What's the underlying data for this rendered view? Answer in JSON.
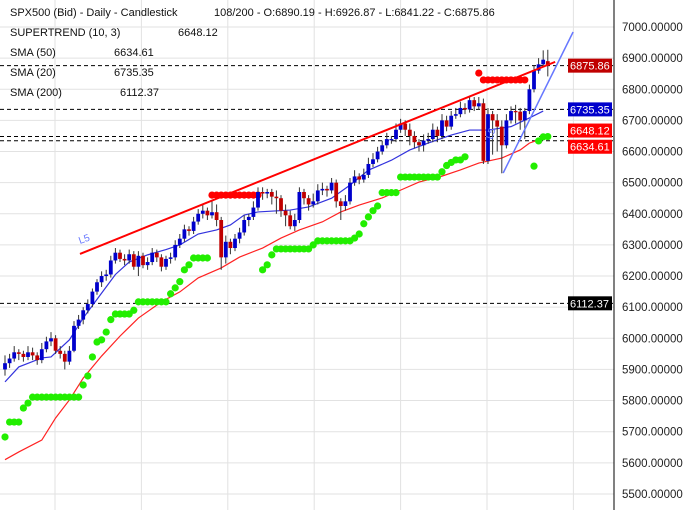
{
  "header": {
    "title": "SPX500 (Bid) - Daily - Candlestick",
    "ohlc_readout": "108/200 - O:6890.19 - H:6926.87 - L:6841.22 - C:6875.86",
    "indicators": [
      {
        "label": "SUPERTREND (10, 3)",
        "value": "6648.12"
      },
      {
        "label": "SMA (50)",
        "value": "6634.61"
      },
      {
        "label": "SMA (20)",
        "value": "6735.35"
      },
      {
        "label": "SMA (200)",
        "value": "6112.37"
      }
    ]
  },
  "chart_data": {
    "type": "candlestick",
    "symbol": "SPX500 (Bid)",
    "timeframe": "Daily",
    "ylim": [
      5450,
      7080
    ],
    "y_ticks": [
      "7000.00000",
      "6900.00000",
      "6800.00000",
      "6700.00000",
      "6600.00000",
      "6500.00000",
      "6400.00000",
      "6300.00000",
      "6200.00000",
      "6100.00000",
      "6000.00000",
      "5900.00000",
      "5800.00000",
      "5700.00000",
      "5600.00000",
      "5500.00000"
    ],
    "grid": true,
    "colors": {
      "up": "#0000cc",
      "down": "#c00000",
      "sma20": "#3333dd",
      "sma50": "#ff2222",
      "supertrend_up": "#22ee00",
      "supertrend_down": "#ff0000",
      "trendline_red": "#ff0000",
      "trendline_blue": "#6677ff",
      "grid": "#e2e2e2"
    },
    "candles_ohlc": [
      [
        5900,
        5945,
        5880,
        5920
      ],
      [
        5920,
        5950,
        5905,
        5935
      ],
      [
        5935,
        5975,
        5925,
        5955
      ],
      [
        5955,
        5965,
        5930,
        5950
      ],
      [
        5950,
        5960,
        5925,
        5940
      ],
      [
        5940,
        5975,
        5930,
        5955
      ],
      [
        5955,
        5970,
        5930,
        5945
      ],
      [
        5945,
        5955,
        5915,
        5930
      ],
      [
        5930,
        5985,
        5920,
        5965
      ],
      [
        5965,
        6005,
        5955,
        5990
      ],
      [
        5990,
        6020,
        5975,
        6000
      ],
      [
        6000,
        6010,
        5950,
        5960
      ],
      [
        5960,
        5975,
        5935,
        5950
      ],
      [
        5950,
        5960,
        5900,
        5925
      ],
      [
        5925,
        5975,
        5915,
        5960
      ],
      [
        5960,
        6055,
        5955,
        6040
      ],
      [
        6040,
        6075,
        6030,
        6060
      ],
      [
        6060,
        6100,
        6045,
        6090
      ],
      [
        6090,
        6125,
        6080,
        6110
      ],
      [
        6110,
        6160,
        6100,
        6150
      ],
      [
        6150,
        6190,
        6140,
        6180
      ],
      [
        6180,
        6215,
        6165,
        6200
      ],
      [
        6200,
        6220,
        6185,
        6205
      ],
      [
        6205,
        6265,
        6195,
        6250
      ],
      [
        6250,
        6290,
        6240,
        6275
      ],
      [
        6275,
        6285,
        6245,
        6255
      ],
      [
        6255,
        6270,
        6235,
        6250
      ],
      [
        6250,
        6285,
        6240,
        6270
      ],
      [
        6270,
        6280,
        6220,
        6230
      ],
      [
        6230,
        6280,
        6200,
        6265
      ],
      [
        6265,
        6275,
        6225,
        6235
      ],
      [
        6235,
        6260,
        6220,
        6245
      ],
      [
        6245,
        6290,
        6235,
        6275
      ],
      [
        6275,
        6285,
        6245,
        6260
      ],
      [
        6260,
        6270,
        6215,
        6230
      ],
      [
        6230,
        6265,
        6220,
        6255
      ],
      [
        6255,
        6275,
        6240,
        6260
      ],
      [
        6260,
        6315,
        6250,
        6300
      ],
      [
        6300,
        6335,
        6290,
        6320
      ],
      [
        6320,
        6365,
        6310,
        6350
      ],
      [
        6350,
        6360,
        6330,
        6345
      ],
      [
        6345,
        6390,
        6335,
        6375
      ],
      [
        6375,
        6415,
        6365,
        6400
      ],
      [
        6400,
        6430,
        6385,
        6410
      ],
      [
        6410,
        6420,
        6380,
        6395
      ],
      [
        6395,
        6440,
        6385,
        6405
      ],
      [
        6405,
        6430,
        6360,
        6380
      ],
      [
        6380,
        6390,
        6220,
        6260
      ],
      [
        6260,
        6330,
        6240,
        6310
      ],
      [
        6310,
        6320,
        6270,
        6290
      ],
      [
        6290,
        6335,
        6280,
        6320
      ],
      [
        6320,
        6355,
        6305,
        6340
      ],
      [
        6340,
        6395,
        6330,
        6380
      ],
      [
        6380,
        6400,
        6360,
        6390
      ],
      [
        6390,
        6440,
        6380,
        6420
      ],
      [
        6420,
        6485,
        6410,
        6470
      ],
      [
        6470,
        6485,
        6445,
        6465
      ],
      [
        6465,
        6480,
        6450,
        6470
      ],
      [
        6470,
        6480,
        6430,
        6455
      ],
      [
        6455,
        6475,
        6400,
        6450
      ],
      [
        6450,
        6460,
        6390,
        6410
      ],
      [
        6410,
        6430,
        6360,
        6395
      ],
      [
        6395,
        6410,
        6350,
        6360
      ],
      [
        6360,
        6400,
        6345,
        6380
      ],
      [
        6380,
        6485,
        6370,
        6470
      ],
      [
        6470,
        6480,
        6430,
        6450
      ],
      [
        6450,
        6460,
        6410,
        6430
      ],
      [
        6430,
        6465,
        6420,
        6440
      ],
      [
        6440,
        6495,
        6430,
        6475
      ],
      [
        6475,
        6500,
        6460,
        6480
      ],
      [
        6480,
        6490,
        6455,
        6475
      ],
      [
        6475,
        6515,
        6465,
        6500
      ],
      [
        6500,
        6510,
        6420,
        6440
      ],
      [
        6440,
        6450,
        6380,
        6425
      ],
      [
        6425,
        6460,
        6410,
        6440
      ],
      [
        6440,
        6515,
        6430,
        6500
      ],
      [
        6500,
        6540,
        6490,
        6520
      ],
      [
        6520,
        6530,
        6495,
        6510
      ],
      [
        6510,
        6545,
        6500,
        6525
      ],
      [
        6525,
        6580,
        6515,
        6560
      ],
      [
        6560,
        6595,
        6550,
        6575
      ],
      [
        6575,
        6615,
        6565,
        6600
      ],
      [
        6600,
        6635,
        6590,
        6620
      ],
      [
        6620,
        6660,
        6610,
        6640
      ],
      [
        6640,
        6650,
        6625,
        6640
      ],
      [
        6640,
        6690,
        6630,
        6670
      ],
      [
        6670,
        6705,
        6660,
        6690
      ],
      [
        6690,
        6700,
        6650,
        6670
      ],
      [
        6670,
        6690,
        6620,
        6650
      ],
      [
        6650,
        6665,
        6610,
        6630
      ],
      [
        6630,
        6640,
        6600,
        6620
      ],
      [
        6620,
        6655,
        6600,
        6635
      ],
      [
        6635,
        6660,
        6625,
        6640
      ],
      [
        6640,
        6690,
        6630,
        6670
      ],
      [
        6670,
        6680,
        6630,
        6650
      ],
      [
        6650,
        6720,
        6640,
        6700
      ],
      [
        6700,
        6715,
        6665,
        6680
      ],
      [
        6680,
        6730,
        6670,
        6715
      ],
      [
        6715,
        6740,
        6705,
        6720
      ],
      [
        6720,
        6760,
        6710,
        6740
      ],
      [
        6740,
        6755,
        6720,
        6735
      ],
      [
        6735,
        6780,
        6725,
        6765
      ],
      [
        6765,
        6775,
        6730,
        6745
      ],
      [
        6745,
        6775,
        6735,
        6755
      ],
      [
        6755,
        6770,
        6560,
        6570
      ],
      [
        6570,
        6740,
        6560,
        6720
      ],
      [
        6720,
        6730,
        6590,
        6700
      ],
      [
        6700,
        6720,
        6600,
        6680
      ],
      [
        6680,
        6700,
        6530,
        6620
      ],
      [
        6620,
        6720,
        6610,
        6700
      ],
      [
        6700,
        6745,
        6690,
        6730
      ],
      [
        6730,
        6750,
        6690,
        6728
      ],
      [
        6728,
        6740,
        6670,
        6700
      ],
      [
        6700,
        6740,
        6640,
        6730
      ],
      [
        6730,
        6815,
        6720,
        6800
      ],
      [
        6800,
        6875,
        6790,
        6860
      ],
      [
        6860,
        6900,
        6850,
        6880
      ],
      [
        6880,
        6925,
        6870,
        6895
      ],
      [
        6890.19,
        6926.87,
        6841.22,
        6875.86
      ]
    ],
    "sma20": [
      [
        0,
        5860
      ],
      [
        3,
        5908
      ],
      [
        8,
        5937
      ],
      [
        10,
        5940
      ],
      [
        14,
        5995
      ],
      [
        17,
        6065
      ],
      [
        21,
        6145
      ],
      [
        24,
        6205
      ],
      [
        27,
        6245
      ],
      [
        31,
        6268
      ],
      [
        35,
        6285
      ],
      [
        38,
        6300
      ],
      [
        42,
        6335
      ],
      [
        46,
        6348
      ],
      [
        49,
        6364
      ],
      [
        52,
        6396
      ],
      [
        55,
        6406
      ],
      [
        62,
        6412
      ],
      [
        66,
        6422
      ],
      [
        71,
        6450
      ],
      [
        75,
        6492
      ],
      [
        79,
        6540
      ],
      [
        84,
        6572
      ],
      [
        88,
        6605
      ],
      [
        92,
        6627
      ],
      [
        97,
        6653
      ],
      [
        101,
        6669
      ],
      [
        105,
        6669
      ],
      [
        110,
        6680
      ],
      [
        114,
        6708
      ],
      [
        117,
        6730
      ]
    ],
    "sma50": [
      [
        0,
        5610
      ],
      [
        3,
        5635
      ],
      [
        8,
        5673
      ],
      [
        11,
        5744
      ],
      [
        14,
        5802
      ],
      [
        17,
        5872
      ],
      [
        21,
        5943
      ],
      [
        25,
        6007
      ],
      [
        29,
        6065
      ],
      [
        34,
        6117
      ],
      [
        38,
        6149
      ],
      [
        42,
        6194
      ],
      [
        47,
        6226
      ],
      [
        51,
        6261
      ],
      [
        56,
        6290
      ],
      [
        60,
        6322
      ],
      [
        64,
        6348
      ],
      [
        69,
        6374
      ],
      [
        73,
        6406
      ],
      [
        77,
        6428
      ],
      [
        82,
        6451
      ],
      [
        86,
        6476
      ],
      [
        90,
        6502
      ],
      [
        95,
        6521
      ],
      [
        99,
        6541
      ],
      [
        103,
        6563
      ],
      [
        108,
        6579
      ],
      [
        112,
        6605
      ],
      [
        114,
        6627
      ],
      [
        117,
        6643
      ]
    ],
    "supertrend_up": [
      [
        0,
        5683
      ],
      [
        1,
        5731
      ],
      [
        2,
        5731
      ],
      [
        3,
        5731
      ],
      [
        4,
        5776
      ],
      [
        5,
        5792
      ],
      [
        6,
        5811
      ],
      [
        7,
        5811
      ],
      [
        8,
        5811
      ],
      [
        9,
        5811
      ],
      [
        10,
        5811
      ],
      [
        11,
        5811
      ],
      [
        12,
        5811
      ],
      [
        13,
        5811
      ],
      [
        14,
        5811
      ],
      [
        15,
        5811
      ],
      [
        16,
        5811
      ],
      [
        17,
        5850
      ],
      [
        18,
        5879
      ],
      [
        19,
        5940
      ],
      [
        20,
        5988
      ],
      [
        21,
        5995
      ],
      [
        22,
        6020
      ],
      [
        23,
        6060
      ],
      [
        24,
        6078
      ],
      [
        25,
        6078
      ],
      [
        26,
        6078
      ],
      [
        27,
        6078
      ],
      [
        28,
        6090
      ],
      [
        29,
        6117
      ],
      [
        30,
        6117
      ],
      [
        31,
        6117
      ],
      [
        32,
        6117
      ],
      [
        33,
        6117
      ],
      [
        34,
        6117
      ],
      [
        35,
        6117
      ],
      [
        36,
        6143
      ],
      [
        37,
        6162
      ],
      [
        38,
        6182
      ],
      [
        39,
        6220
      ],
      [
        40,
        6236
      ],
      [
        41,
        6258
      ],
      [
        42,
        6258
      ],
      [
        43,
        6258
      ],
      [
        44,
        6258
      ],
      [
        56,
        6220
      ],
      [
        57,
        6236
      ],
      [
        58,
        6268
      ],
      [
        59,
        6287
      ],
      [
        60,
        6287
      ],
      [
        61,
        6287
      ],
      [
        62,
        6287
      ],
      [
        63,
        6287
      ],
      [
        64,
        6287
      ],
      [
        65,
        6287
      ],
      [
        66,
        6287
      ],
      [
        67,
        6300
      ],
      [
        68,
        6313
      ],
      [
        69,
        6313
      ],
      [
        70,
        6313
      ],
      [
        71,
        6313
      ],
      [
        72,
        6313
      ],
      [
        73,
        6313
      ],
      [
        74,
        6313
      ],
      [
        75,
        6313
      ],
      [
        76,
        6322
      ],
      [
        77,
        6335
      ],
      [
        78,
        6368
      ],
      [
        79,
        6390
      ],
      [
        80,
        6410
      ],
      [
        81,
        6425
      ],
      [
        82,
        6468
      ],
      [
        83,
        6468
      ],
      [
        84,
        6468
      ],
      [
        85,
        6468
      ],
      [
        86,
        6518
      ],
      [
        87,
        6518
      ],
      [
        88,
        6518
      ],
      [
        89,
        6518
      ],
      [
        90,
        6518
      ],
      [
        91,
        6518
      ],
      [
        92,
        6518
      ],
      [
        93,
        6518
      ],
      [
        94,
        6518
      ],
      [
        95,
        6535
      ],
      [
        96,
        6555
      ],
      [
        97,
        6565
      ],
      [
        98,
        6573
      ],
      [
        99,
        6573
      ],
      [
        100,
        6583
      ],
      [
        115,
        6553
      ],
      [
        116,
        6634
      ],
      [
        117,
        6647
      ],
      [
        118,
        6648.12
      ]
    ],
    "supertrend_down": [
      [
        45,
        6460
      ],
      [
        46,
        6460
      ],
      [
        47,
        6460
      ],
      [
        48,
        6460
      ],
      [
        49,
        6460
      ],
      [
        50,
        6460
      ],
      [
        51,
        6460
      ],
      [
        52,
        6460
      ],
      [
        53,
        6460
      ],
      [
        54,
        6460
      ],
      [
        55,
        6460
      ],
      [
        103,
        6852
      ],
      [
        104,
        6830
      ],
      [
        105,
        6830
      ],
      [
        106,
        6830
      ],
      [
        107,
        6830
      ],
      [
        108,
        6830
      ],
      [
        109,
        6830
      ],
      [
        110,
        6830
      ],
      [
        111,
        6830
      ],
      [
        112,
        6830
      ],
      [
        113,
        6830
      ]
    ],
    "trendlines": [
      {
        "label": "L5",
        "color": "#ff0000",
        "from": [
          16.3,
          6271
        ],
        "to": [
          119.6,
          6888
        ]
      },
      {
        "label": "L5",
        "color": "#6677ff",
        "from": [
          108.3,
          6531
        ],
        "to": [
          123.5,
          6984
        ]
      }
    ],
    "horizontal_lines": [
      {
        "value": 6875.86,
        "label": "6875.86",
        "bg": "#c00000"
      },
      {
        "value": 6735.35,
        "label": "6735.35",
        "bg": "#0000cc"
      },
      {
        "value": 6648.12,
        "label": "6648.12",
        "bg": "#ff0000"
      },
      {
        "value": 6634.61,
        "label": "6634.61",
        "bg": "#ff0000"
      },
      {
        "value": 6112.37,
        "label": "6112.37",
        "bg": "#000000"
      }
    ]
  }
}
